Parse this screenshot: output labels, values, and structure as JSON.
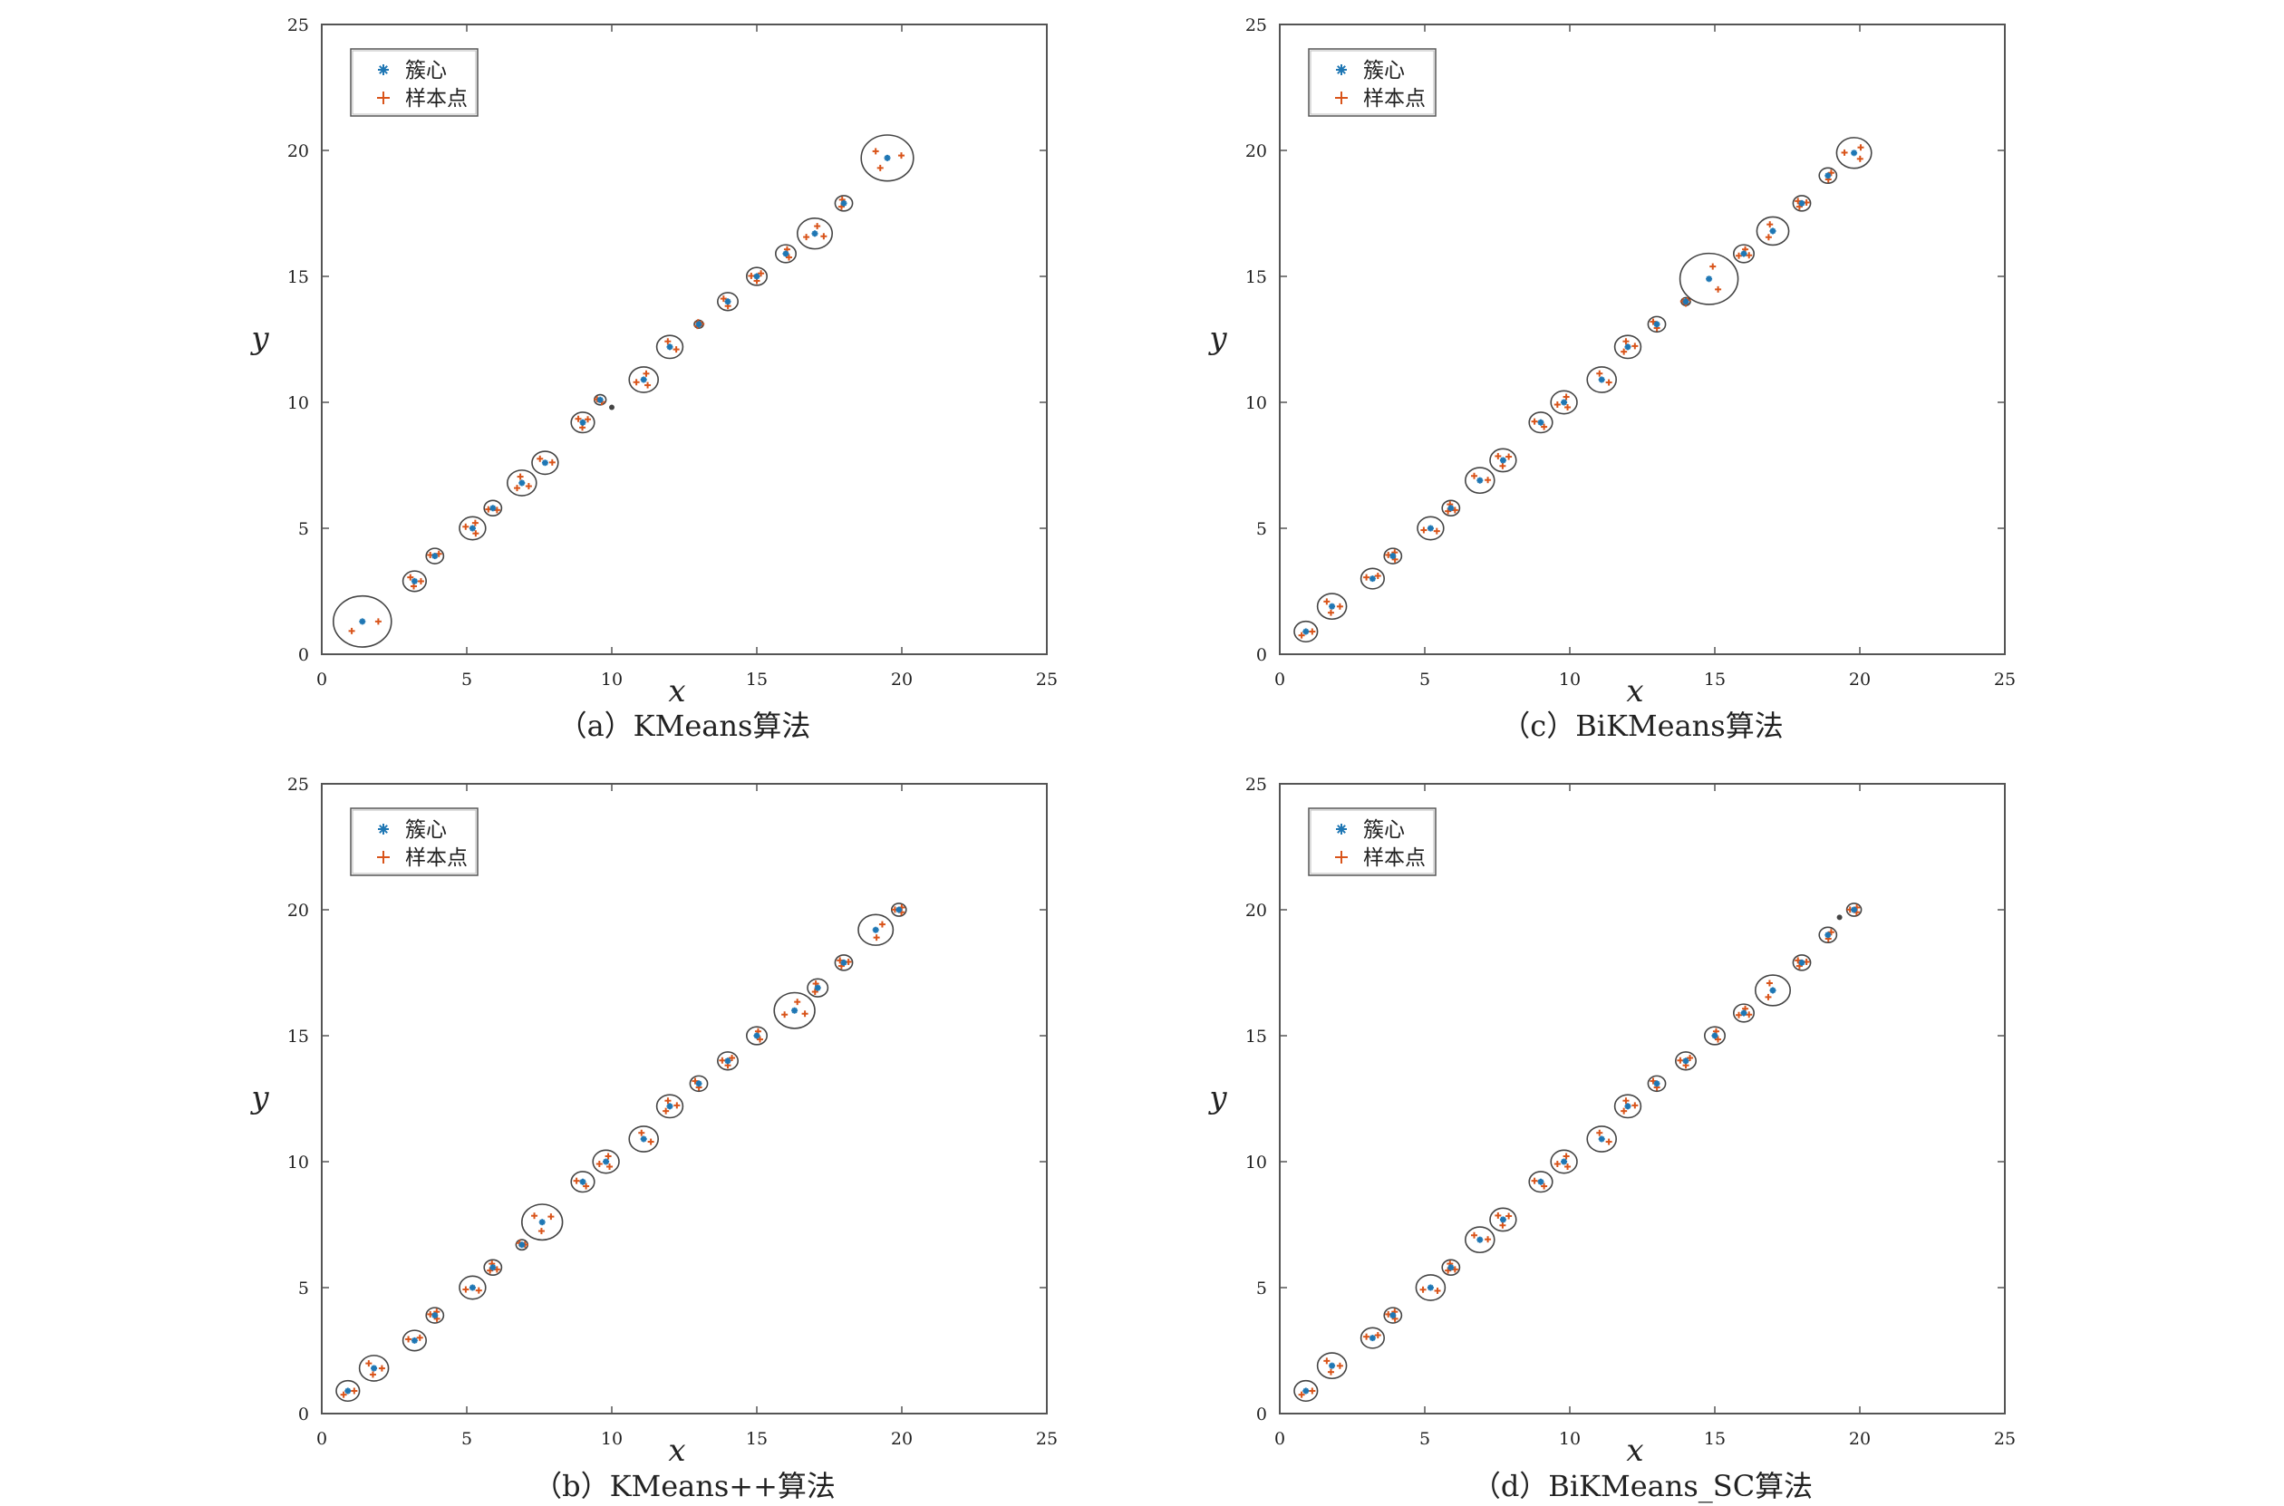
{
  "figure": {
    "colors": {
      "centroid": "#1f77b4",
      "sample": "#d9541a",
      "circle": "#444444",
      "axes": "#555555"
    },
    "legend": {
      "centroid_label": "簇心",
      "sample_label": "样本点",
      "centroid_marker": "asterisk",
      "sample_marker": "plus",
      "placement": "top-left"
    }
  },
  "chart_data": [
    {
      "type": "scatter",
      "id": "a",
      "caption": "（a）KMeans算法",
      "xlabel": "x",
      "ylabel": "y",
      "xlim": [
        0,
        25
      ],
      "ylim": [
        0,
        25
      ],
      "xticks": [
        "0",
        "5",
        "10",
        "15",
        "20",
        "25"
      ],
      "yticks": [
        "0",
        "5",
        "10",
        "15",
        "20",
        "25"
      ],
      "grid": false,
      "clusters": [
        {
          "x": 1.4,
          "y": 1.3,
          "r": 1.0
        },
        {
          "x": 3.2,
          "y": 2.9,
          "r": 0.4
        },
        {
          "x": 3.9,
          "y": 3.9,
          "r": 0.3
        },
        {
          "x": 5.2,
          "y": 5.0,
          "r": 0.45
        },
        {
          "x": 5.9,
          "y": 5.8,
          "r": 0.3
        },
        {
          "x": 6.9,
          "y": 6.8,
          "r": 0.5
        },
        {
          "x": 7.7,
          "y": 7.6,
          "r": 0.45
        },
        {
          "x": 9.0,
          "y": 9.2,
          "r": 0.4
        },
        {
          "x": 9.6,
          "y": 10.1,
          "r": 0.2
        },
        {
          "x": 11.1,
          "y": 10.9,
          "r": 0.5
        },
        {
          "x": 12.0,
          "y": 12.2,
          "r": 0.45
        },
        {
          "x": 13.0,
          "y": 13.1,
          "r": 0.1
        },
        {
          "x": 14.0,
          "y": 14.0,
          "r": 0.35
        },
        {
          "x": 15.0,
          "y": 15.0,
          "r": 0.35
        },
        {
          "x": 16.0,
          "y": 15.9,
          "r": 0.35
        },
        {
          "x": 17.0,
          "y": 16.7,
          "r": 0.6
        },
        {
          "x": 18.0,
          "y": 17.9,
          "r": 0.3
        },
        {
          "x": 19.5,
          "y": 19.7,
          "r": 0.9
        }
      ],
      "lone_points": [
        {
          "x": 10.0,
          "y": 9.8
        }
      ]
    },
    {
      "type": "scatter",
      "id": "b",
      "caption": "（b）KMeans++算法",
      "xlabel": "x",
      "ylabel": "y",
      "xlim": [
        0,
        25
      ],
      "ylim": [
        0,
        25
      ],
      "xticks": [
        "0",
        "5",
        "10",
        "15",
        "20",
        "25"
      ],
      "yticks": [
        "0",
        "5",
        "10",
        "15",
        "20",
        "25"
      ],
      "grid": false,
      "clusters": [
        {
          "x": 0.9,
          "y": 0.9,
          "r": 0.4
        },
        {
          "x": 1.8,
          "y": 1.8,
          "r": 0.5
        },
        {
          "x": 3.2,
          "y": 2.9,
          "r": 0.4
        },
        {
          "x": 3.9,
          "y": 3.9,
          "r": 0.3
        },
        {
          "x": 5.2,
          "y": 5.0,
          "r": 0.45
        },
        {
          "x": 5.9,
          "y": 5.8,
          "r": 0.3
        },
        {
          "x": 6.9,
          "y": 6.7,
          "r": 0.2
        },
        {
          "x": 7.6,
          "y": 7.6,
          "r": 0.7
        },
        {
          "x": 9.0,
          "y": 9.2,
          "r": 0.4
        },
        {
          "x": 9.8,
          "y": 10.0,
          "r": 0.45
        },
        {
          "x": 11.1,
          "y": 10.9,
          "r": 0.5
        },
        {
          "x": 12.0,
          "y": 12.2,
          "r": 0.45
        },
        {
          "x": 13.0,
          "y": 13.1,
          "r": 0.3
        },
        {
          "x": 14.0,
          "y": 14.0,
          "r": 0.35
        },
        {
          "x": 15.0,
          "y": 15.0,
          "r": 0.35
        },
        {
          "x": 16.3,
          "y": 16.0,
          "r": 0.7
        },
        {
          "x": 17.1,
          "y": 16.9,
          "r": 0.35
        },
        {
          "x": 18.0,
          "y": 17.9,
          "r": 0.3
        },
        {
          "x": 19.1,
          "y": 19.2,
          "r": 0.6
        },
        {
          "x": 19.9,
          "y": 20.0,
          "r": 0.25
        }
      ],
      "lone_points": []
    },
    {
      "type": "scatter",
      "id": "c",
      "caption": "（c）BiKMeans算法",
      "xlabel": "x",
      "ylabel": "y",
      "xlim": [
        0,
        25
      ],
      "ylim": [
        0,
        25
      ],
      "xticks": [
        "0",
        "5",
        "10",
        "15",
        "20",
        "25"
      ],
      "yticks": [
        "0",
        "5",
        "10",
        "15",
        "20",
        "25"
      ],
      "grid": false,
      "clusters": [
        {
          "x": 0.9,
          "y": 0.9,
          "r": 0.4
        },
        {
          "x": 1.8,
          "y": 1.9,
          "r": 0.5
        },
        {
          "x": 3.2,
          "y": 3.0,
          "r": 0.4
        },
        {
          "x": 3.9,
          "y": 3.9,
          "r": 0.3
        },
        {
          "x": 5.2,
          "y": 5.0,
          "r": 0.45
        },
        {
          "x": 5.9,
          "y": 5.8,
          "r": 0.3
        },
        {
          "x": 6.9,
          "y": 6.9,
          "r": 0.5
        },
        {
          "x": 7.7,
          "y": 7.7,
          "r": 0.45
        },
        {
          "x": 9.0,
          "y": 9.2,
          "r": 0.4
        },
        {
          "x": 9.8,
          "y": 10.0,
          "r": 0.45
        },
        {
          "x": 11.1,
          "y": 10.9,
          "r": 0.5
        },
        {
          "x": 12.0,
          "y": 12.2,
          "r": 0.45
        },
        {
          "x": 13.0,
          "y": 13.1,
          "r": 0.3
        },
        {
          "x": 14.0,
          "y": 14.0,
          "r": 0.15
        },
        {
          "x": 14.8,
          "y": 14.9,
          "r": 1.0
        },
        {
          "x": 16.0,
          "y": 15.9,
          "r": 0.35
        },
        {
          "x": 17.0,
          "y": 16.8,
          "r": 0.55
        },
        {
          "x": 18.0,
          "y": 17.9,
          "r": 0.3
        },
        {
          "x": 18.9,
          "y": 19.0,
          "r": 0.3
        },
        {
          "x": 19.8,
          "y": 19.9,
          "r": 0.6
        }
      ],
      "lone_points": []
    },
    {
      "type": "scatter",
      "id": "d",
      "caption": "（d）BiKMeans_SC算法",
      "xlabel": "x",
      "ylabel": "y",
      "xlim": [
        0,
        25
      ],
      "ylim": [
        0,
        25
      ],
      "xticks": [
        "0",
        "5",
        "10",
        "15",
        "20",
        "25"
      ],
      "yticks": [
        "0",
        "5",
        "10",
        "15",
        "20",
        "25"
      ],
      "grid": false,
      "clusters": [
        {
          "x": 0.9,
          "y": 0.9,
          "r": 0.4
        },
        {
          "x": 1.8,
          "y": 1.9,
          "r": 0.5
        },
        {
          "x": 3.2,
          "y": 3.0,
          "r": 0.4
        },
        {
          "x": 3.9,
          "y": 3.9,
          "r": 0.3
        },
        {
          "x": 5.2,
          "y": 5.0,
          "r": 0.5
        },
        {
          "x": 5.9,
          "y": 5.8,
          "r": 0.3
        },
        {
          "x": 6.9,
          "y": 6.9,
          "r": 0.5
        },
        {
          "x": 7.7,
          "y": 7.7,
          "r": 0.45
        },
        {
          "x": 9.0,
          "y": 9.2,
          "r": 0.4
        },
        {
          "x": 9.8,
          "y": 10.0,
          "r": 0.45
        },
        {
          "x": 11.1,
          "y": 10.9,
          "r": 0.5
        },
        {
          "x": 12.0,
          "y": 12.2,
          "r": 0.45
        },
        {
          "x": 13.0,
          "y": 13.1,
          "r": 0.3
        },
        {
          "x": 14.0,
          "y": 14.0,
          "r": 0.35
        },
        {
          "x": 15.0,
          "y": 15.0,
          "r": 0.35
        },
        {
          "x": 16.0,
          "y": 15.9,
          "r": 0.35
        },
        {
          "x": 17.0,
          "y": 16.8,
          "r": 0.6
        },
        {
          "x": 18.0,
          "y": 17.9,
          "r": 0.3
        },
        {
          "x": 18.9,
          "y": 19.0,
          "r": 0.3
        },
        {
          "x": 19.8,
          "y": 20.0,
          "r": 0.25
        }
      ],
      "lone_points": [
        {
          "x": 19.3,
          "y": 19.7
        }
      ]
    }
  ]
}
